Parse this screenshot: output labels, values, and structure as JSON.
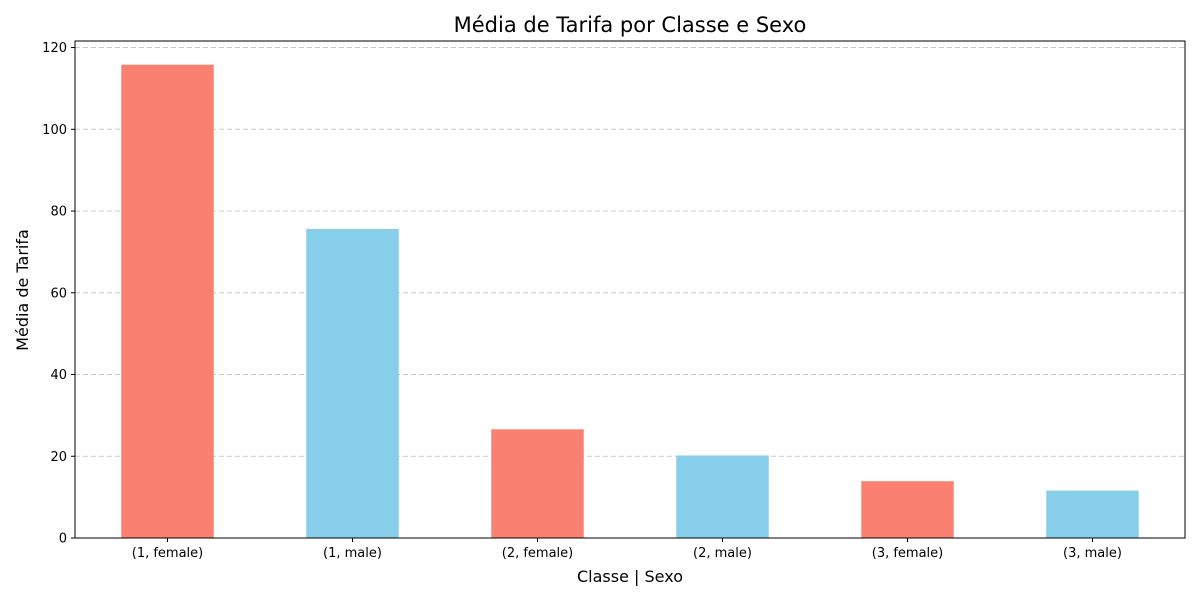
{
  "chart_data": {
    "type": "bar",
    "title": "Média de Tarifa por Classe e Sexo",
    "xlabel": "Classe | Sexo",
    "ylabel": "Média de Tarifa",
    "categories": [
      "(1, female)",
      "(1, male)",
      "(2, female)",
      "(2, male)",
      "(3, female)",
      "(3, male)"
    ],
    "values": [
      115.8,
      75.6,
      26.6,
      20.2,
      13.9,
      11.6
    ],
    "bar_colors": [
      "#fa8072",
      "#87ceeb",
      "#fa8072",
      "#87ceeb",
      "#fa8072",
      "#87ceeb"
    ],
    "ylim": [
      0,
      121.6
    ],
    "yticks": [
      0,
      20,
      40,
      60,
      80,
      100,
      120
    ],
    "grid": "y, dashed",
    "legend": "none"
  }
}
